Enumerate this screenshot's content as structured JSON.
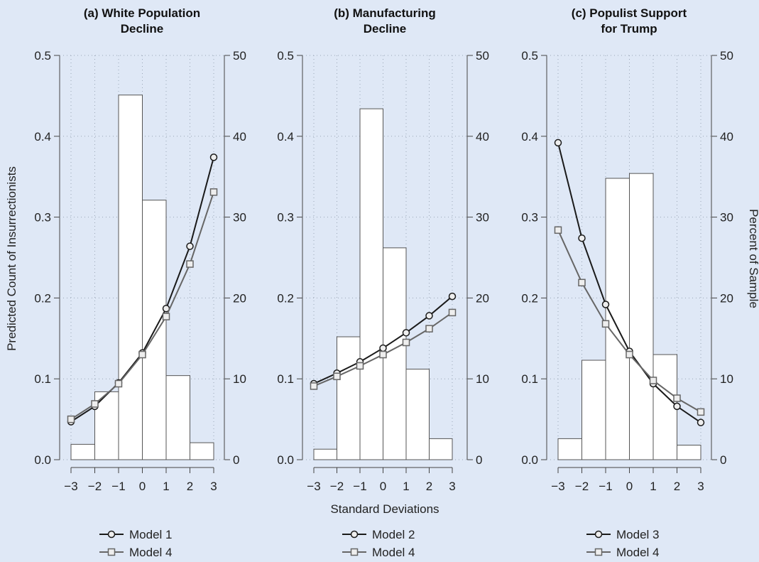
{
  "figure": {
    "left_axis_label": "Predicted Count of Insurrectionists",
    "right_axis_label": "Percent of Sample",
    "x_axis_label": "Standard Deviations",
    "background_color": "#dfe8f6"
  },
  "chart_data": [
    {
      "type": "bar+line",
      "title": "(a) White Population\nDecline",
      "x_ticks": [
        "−3",
        "−2",
        "−1",
        "0",
        "1",
        "2",
        "3"
      ],
      "ylim_left": [
        0,
        0.5
      ],
      "ylim_right": [
        0,
        50
      ],
      "y_ticks_left": [
        "0.0",
        "0.1",
        "0.2",
        "0.3",
        "0.4",
        "0.5"
      ],
      "y_ticks_right": [
        "0",
        "10",
        "20",
        "30",
        "40",
        "50"
      ],
      "histogram": {
        "bins": [
          [
            -3,
            -2
          ],
          [
            -2,
            -1
          ],
          [
            -1,
            0
          ],
          [
            0,
            1
          ],
          [
            1,
            2
          ],
          [
            2,
            3
          ]
        ],
        "percent": [
          1.9,
          8.4,
          45.1,
          32.1,
          10.4,
          2.1
        ]
      },
      "series": [
        {
          "name": "Model 1",
          "marker": "circle",
          "x": [
            -3,
            -2,
            -1,
            0,
            1,
            2,
            3
          ],
          "values": [
            0.047,
            0.066,
            0.095,
            0.132,
            0.187,
            0.264,
            0.374
          ]
        },
        {
          "name": "Model 4",
          "marker": "square",
          "x": [
            -3,
            -2,
            -1,
            0,
            1,
            2,
            3
          ],
          "values": [
            0.05,
            0.069,
            0.094,
            0.13,
            0.177,
            0.242,
            0.331
          ]
        }
      ],
      "legend": [
        "Model 1",
        "Model 4"
      ],
      "grid": true
    },
    {
      "type": "bar+line",
      "title": "(b) Manufacturing\nDecline",
      "x_ticks": [
        "−3",
        "−2",
        "−1",
        "0",
        "1",
        "2",
        "3"
      ],
      "ylim_left": [
        0,
        0.5
      ],
      "ylim_right": [
        0,
        50
      ],
      "y_ticks_left": [
        "0.0",
        "0.1",
        "0.2",
        "0.3",
        "0.4",
        "0.5"
      ],
      "y_ticks_right": [
        "0",
        "10",
        "20",
        "30",
        "40",
        "50"
      ],
      "histogram": {
        "bins": [
          [
            -3,
            -2
          ],
          [
            -2,
            -1
          ],
          [
            -1,
            0
          ],
          [
            0,
            1
          ],
          [
            1,
            2
          ],
          [
            2,
            3
          ]
        ],
        "percent": [
          1.3,
          15.2,
          43.4,
          26.2,
          11.2,
          2.6
        ]
      },
      "series": [
        {
          "name": "Model 2",
          "marker": "circle",
          "x": [
            -3,
            -2,
            -1,
            0,
            1,
            2,
            3
          ],
          "values": [
            0.094,
            0.107,
            0.121,
            0.138,
            0.157,
            0.178,
            0.202
          ]
        },
        {
          "name": "Model 4",
          "marker": "square",
          "x": [
            -3,
            -2,
            -1,
            0,
            1,
            2,
            3
          ],
          "values": [
            0.091,
            0.103,
            0.116,
            0.13,
            0.145,
            0.162,
            0.182
          ]
        }
      ],
      "legend": [
        "Model 2",
        "Model 4"
      ],
      "grid": true
    },
    {
      "type": "bar+line",
      "title": "(c) Populist Support\nfor Trump",
      "x_ticks": [
        "−3",
        "−2",
        "−1",
        "0",
        "1",
        "2",
        "3"
      ],
      "ylim_left": [
        0,
        0.5
      ],
      "ylim_right": [
        0,
        50
      ],
      "y_ticks_left": [
        "0.0",
        "0.1",
        "0.2",
        "0.3",
        "0.4",
        "0.5"
      ],
      "y_ticks_right": [
        "0",
        "10",
        "20",
        "30",
        "40",
        "50"
      ],
      "histogram": {
        "bins": [
          [
            -3,
            -2
          ],
          [
            -2,
            -1
          ],
          [
            -1,
            0
          ],
          [
            0,
            1
          ],
          [
            1,
            2
          ],
          [
            2,
            3
          ]
        ],
        "percent": [
          2.6,
          12.3,
          34.8,
          35.4,
          13.0,
          1.8
        ]
      },
      "series": [
        {
          "name": "Model 3",
          "marker": "circle",
          "x": [
            -3,
            -2,
            -1,
            0,
            1,
            2,
            3
          ],
          "values": [
            0.392,
            0.274,
            0.192,
            0.134,
            0.094,
            0.066,
            0.046
          ]
        },
        {
          "name": "Model 4",
          "marker": "square",
          "x": [
            -3,
            -2,
            -1,
            0,
            1,
            2,
            3
          ],
          "values": [
            0.284,
            0.219,
            0.168,
            0.13,
            0.098,
            0.076,
            0.059
          ]
        }
      ],
      "legend": [
        "Model 3",
        "Model 4"
      ],
      "grid": true
    }
  ]
}
